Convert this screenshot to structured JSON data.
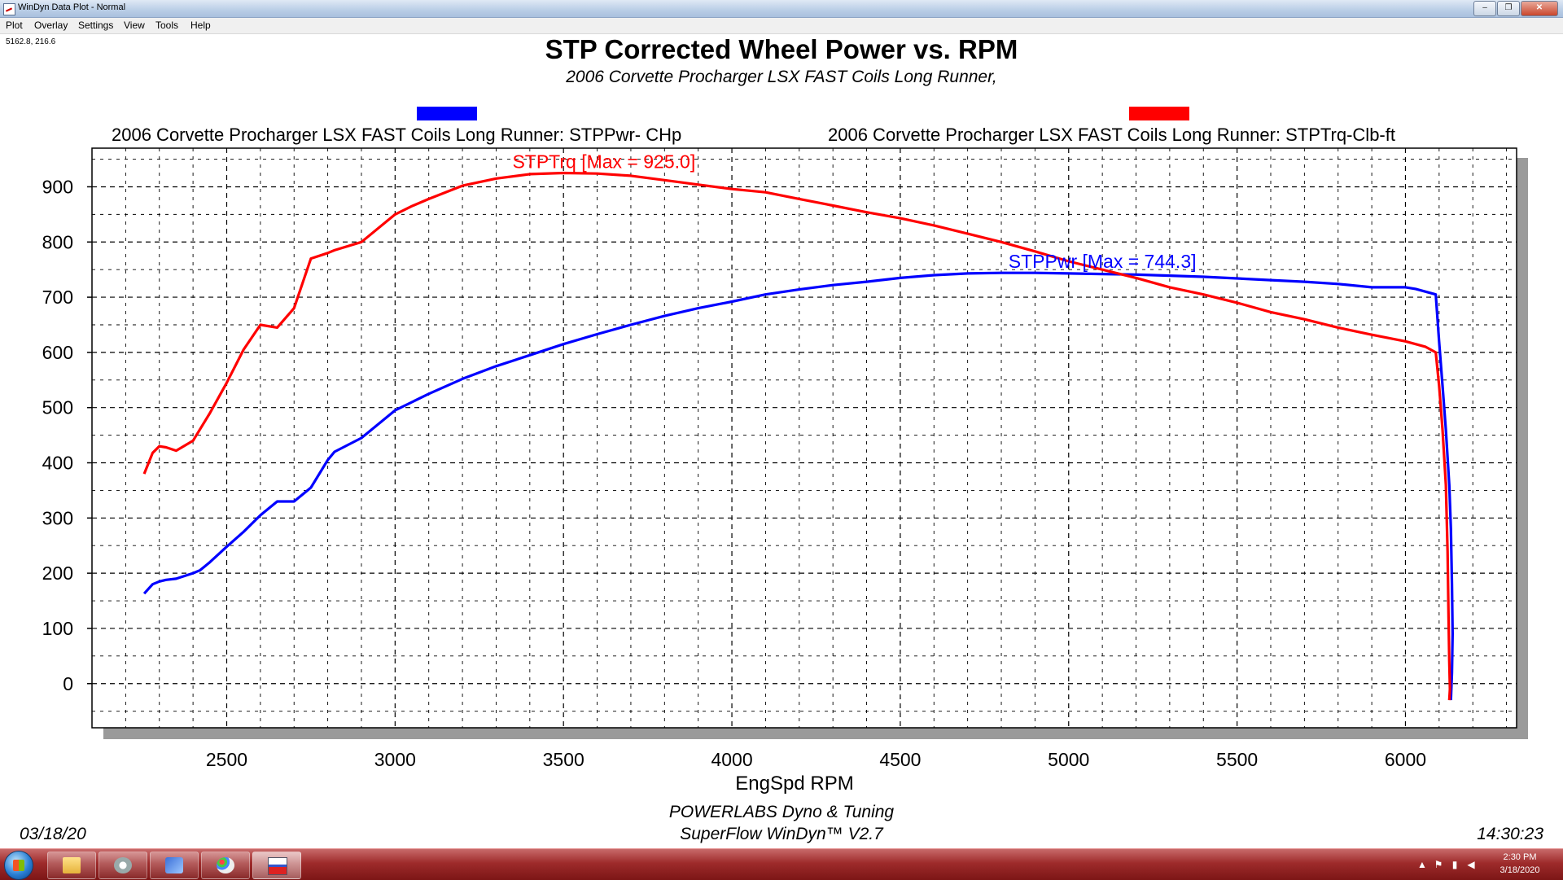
{
  "window": {
    "title": "WinDyn Data Plot - Normal",
    "controls": [
      "–",
      "❐",
      "✕"
    ]
  },
  "menu": [
    "Plot",
    "Overlay",
    "Settings",
    "View",
    "Tools",
    "Help"
  ],
  "cursor_readout": "5162.8, 216.6",
  "colors": {
    "power": "#0000ff",
    "torque": "#ff0000",
    "grid": "#000000"
  },
  "chart_data": {
    "type": "line",
    "title": "STP Corrected Wheel Power vs. RPM",
    "subtitle": "2006 Corvette Procharger LSX FAST Coils Long Runner,",
    "xlabel": "EngSpd  RPM",
    "ylabel": "",
    "xlim": [
      2100,
      6330
    ],
    "ylim": [
      -80,
      970
    ],
    "x_ticks": [
      2500,
      3000,
      3500,
      4000,
      4500,
      5000,
      5500,
      6000
    ],
    "y_ticks": [
      0,
      100,
      200,
      300,
      400,
      500,
      600,
      700,
      800,
      900
    ],
    "grid": true,
    "legend": [
      {
        "label": "2006 Corvette Procharger LSX FAST Coils Long Runner: STPPwr- CHp",
        "color": "#0000ff"
      },
      {
        "label": "2006 Corvette Procharger LSX FAST Coils Long Runner: STPTrq-Clb-ft",
        "color": "#ff0000"
      }
    ],
    "annotations": [
      {
        "series": "STPTrq",
        "text": "STPTrq [Max = 925.0]",
        "x": 3620,
        "y": 925,
        "color": "#ff0000"
      },
      {
        "series": "STPPwr",
        "text": "STPPwr [Max = 744.3]",
        "x": 5100,
        "y": 744,
        "color": "#0000ff"
      }
    ],
    "series": [
      {
        "name": "STPPwr",
        "color": "#0000ff",
        "x": [
          2255,
          2280,
          2300,
          2320,
          2350,
          2400,
          2420,
          2450,
          2500,
          2550,
          2600,
          2650,
          2700,
          2750,
          2800,
          2820,
          2900,
          3000,
          3100,
          3200,
          3300,
          3400,
          3500,
          3600,
          3700,
          3800,
          3900,
          4000,
          4100,
          4200,
          4300,
          4400,
          4500,
          4600,
          4700,
          4800,
          4900,
          5000,
          5100,
          5200,
          5300,
          5400,
          5500,
          5600,
          5700,
          5800,
          5900,
          6000,
          6030,
          6060,
          6090,
          6100,
          6110,
          6120,
          6130,
          6135,
          6138,
          6140,
          6138,
          6135
        ],
        "y": [
          163,
          180,
          185,
          188,
          190,
          200,
          205,
          220,
          248,
          275,
          305,
          330,
          330,
          355,
          405,
          420,
          445,
          495,
          525,
          552,
          575,
          595,
          615,
          633,
          650,
          666,
          680,
          692,
          705,
          714,
          722,
          728,
          735,
          740,
          743,
          744,
          744,
          743,
          742,
          741,
          739,
          737,
          734,
          731,
          728,
          724,
          718,
          718,
          715,
          710,
          705,
          620,
          540,
          460,
          360,
          280,
          180,
          90,
          20,
          -30
        ]
      },
      {
        "name": "STPTrq",
        "color": "#ff0000",
        "x": [
          2255,
          2280,
          2300,
          2320,
          2350,
          2400,
          2420,
          2450,
          2500,
          2550,
          2600,
          2650,
          2700,
          2750,
          2800,
          2820,
          2900,
          3000,
          3050,
          3100,
          3200,
          3300,
          3400,
          3500,
          3600,
          3700,
          3800,
          3900,
          4000,
          4100,
          4200,
          4300,
          4400,
          4500,
          4600,
          4700,
          4800,
          4900,
          5000,
          5100,
          5200,
          5300,
          5400,
          5500,
          5600,
          5700,
          5800,
          5900,
          6000,
          6030,
          6060,
          6090,
          6100,
          6110,
          6120,
          6125,
          6128,
          6130,
          6132,
          6130
        ],
        "y": [
          380,
          418,
          430,
          428,
          422,
          440,
          460,
          490,
          545,
          605,
          650,
          645,
          680,
          770,
          780,
          785,
          800,
          850,
          865,
          878,
          902,
          915,
          923,
          925,
          924,
          920,
          912,
          904,
          896,
          890,
          878,
          866,
          854,
          843,
          830,
          815,
          800,
          783,
          765,
          750,
          735,
          718,
          705,
          690,
          673,
          660,
          645,
          632,
          620,
          615,
          610,
          600,
          540,
          460,
          360,
          240,
          120,
          40,
          -10,
          -30
        ]
      }
    ]
  },
  "footer": {
    "company": "POWERLABS Dyno & Tuning",
    "software": "SuperFlow WinDyn™  V2.7",
    "date": "03/18/20",
    "time": "14:30:23"
  },
  "taskbar": {
    "clock_time": "2:30 PM",
    "clock_date": "3/18/2020",
    "apps": [
      "explorer-icon",
      "paint-tool-icon",
      "windyn-icon",
      "paint-palette-icon",
      "plot-viewer-icon"
    ]
  }
}
